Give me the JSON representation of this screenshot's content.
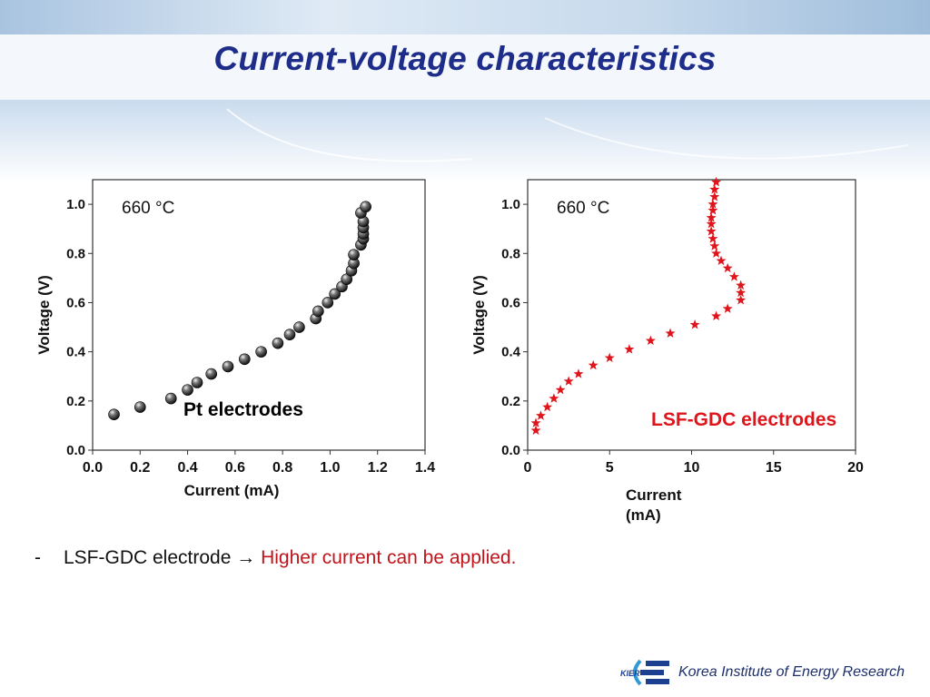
{
  "title": "Current-voltage characteristics",
  "chart_data": [
    {
      "type": "scatter",
      "annotation": "660 °C",
      "label": "Pt electrodes",
      "xlabel": "Current (mA)",
      "ylabel": "Voltage (V)",
      "xlim": [
        0.0,
        1.4
      ],
      "ylim": [
        0.0,
        1.1
      ],
      "xticks": [
        "0.0",
        "0.2",
        "0.4",
        "0.6",
        "0.8",
        "1.0",
        "1.2",
        "1.4"
      ],
      "yticks": [
        "0.0",
        "0.2",
        "0.4",
        "0.6",
        "0.8",
        "1.0"
      ],
      "marker": "sphere",
      "color": "#111111",
      "x": [
        0.09,
        0.2,
        0.33,
        0.4,
        0.44,
        0.5,
        0.57,
        0.64,
        0.71,
        0.78,
        0.83,
        0.87,
        0.94,
        0.95,
        0.99,
        1.02,
        1.05,
        1.07,
        1.09,
        1.1,
        1.1,
        1.13,
        1.14,
        1.14,
        1.14,
        1.14,
        1.13,
        1.15
      ],
      "y": [
        0.145,
        0.175,
        0.21,
        0.245,
        0.275,
        0.31,
        0.34,
        0.37,
        0.4,
        0.435,
        0.47,
        0.5,
        0.535,
        0.565,
        0.6,
        0.635,
        0.665,
        0.695,
        0.73,
        0.76,
        0.795,
        0.835,
        0.86,
        0.88,
        0.905,
        0.93,
        0.965,
        0.99
      ]
    },
    {
      "type": "scatter",
      "annotation": "660 °C",
      "label": "LSF-GDC electrodes",
      "xlabel": "Current (mA)",
      "ylabel": "Voltage (V)",
      "xlim": [
        0,
        20
      ],
      "ylim": [
        0.0,
        1.1
      ],
      "xticks": [
        "0",
        "5",
        "10",
        "15",
        "20"
      ],
      "yticks": [
        "0.0",
        "0.2",
        "0.4",
        "0.6",
        "0.8",
        "1.0"
      ],
      "marker": "star",
      "color": "#e0141b",
      "x": [
        0.5,
        0.5,
        0.8,
        1.2,
        1.6,
        2.0,
        2.5,
        3.1,
        4.0,
        5.0,
        6.2,
        7.5,
        8.7,
        10.2,
        11.5,
        12.2,
        13.0,
        13.0,
        13.0,
        12.6,
        12.2,
        11.8,
        11.5,
        11.4,
        11.3,
        11.2,
        11.2,
        11.2,
        11.3,
        11.3,
        11.4,
        11.4,
        11.5
      ],
      "y": [
        0.08,
        0.11,
        0.14,
        0.175,
        0.21,
        0.245,
        0.28,
        0.31,
        0.345,
        0.375,
        0.41,
        0.445,
        0.475,
        0.51,
        0.545,
        0.575,
        0.61,
        0.64,
        0.67,
        0.705,
        0.74,
        0.77,
        0.8,
        0.83,
        0.86,
        0.89,
        0.92,
        0.945,
        0.975,
        1.0,
        1.03,
        1.06,
        1.09
      ]
    }
  ],
  "note": {
    "bullet": "-",
    "text": "LSF-GDC electrode",
    "arrow": "→",
    "highlight": "Higher current can be applied."
  },
  "footer": {
    "logo_text": "KIER",
    "logo_icon": "kier-logo-icon",
    "name": "Korea Institute of Energy Research"
  },
  "colors": {
    "title": "#1f2d8a",
    "highlight": "#c0141b",
    "star": "#e0141b"
  }
}
